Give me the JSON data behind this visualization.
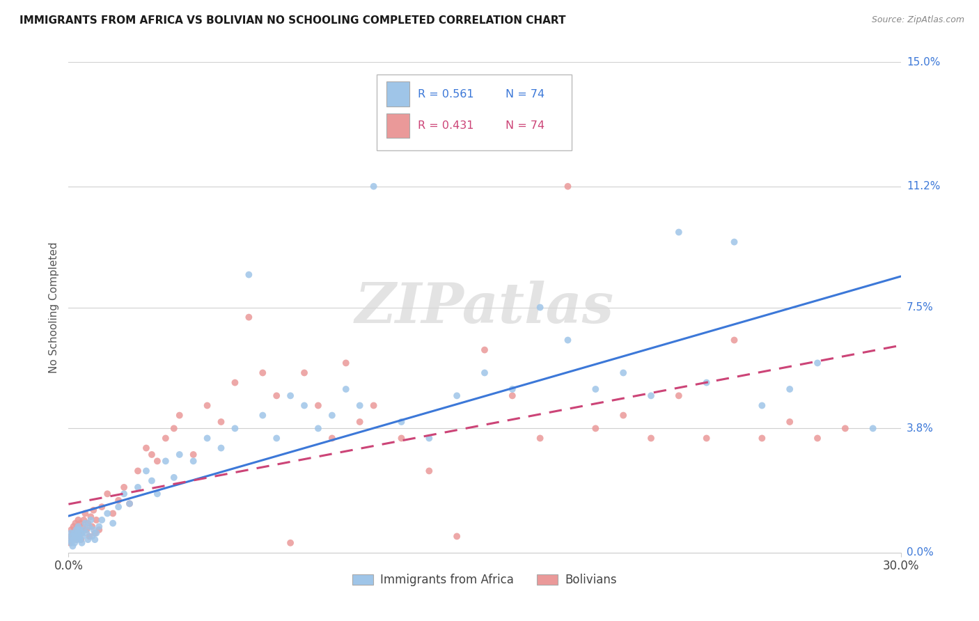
{
  "title": "IMMIGRANTS FROM AFRICA VS BOLIVIAN NO SCHOOLING COMPLETED CORRELATION CHART",
  "source": "Source: ZipAtlas.com",
  "ylabel": "No Schooling Completed",
  "ytick_values": [
    0.0,
    3.8,
    7.5,
    11.2,
    15.0
  ],
  "ytick_labels": [
    "0.0%",
    "3.8%",
    "7.5%",
    "11.2%",
    "15.0%"
  ],
  "xlim": [
    0.0,
    30.0
  ],
  "ylim": [
    0.0,
    15.0
  ],
  "blue_color": "#9fc5e8",
  "pink_color": "#ea9999",
  "blue_line_color": "#3c78d8",
  "pink_line_color": "#cc4477",
  "watermark_text": "ZIPatlas",
  "legend_r1_text": "R = 0.561",
  "legend_n1_text": "N = 74",
  "legend_r2_text": "R = 0.431",
  "legend_n2_text": "N = 74",
  "legend_label1": "Immigrants from Africa",
  "legend_label2": "Bolivians",
  "africa_x": [
    0.05,
    0.08,
    0.1,
    0.12,
    0.15,
    0.18,
    0.2,
    0.22,
    0.25,
    0.28,
    0.3,
    0.32,
    0.35,
    0.38,
    0.4,
    0.42,
    0.45,
    0.48,
    0.5,
    0.55,
    0.6,
    0.65,
    0.7,
    0.75,
    0.8,
    0.85,
    0.9,
    0.95,
    1.0,
    1.1,
    1.2,
    1.4,
    1.6,
    1.8,
    2.0,
    2.2,
    2.5,
    2.8,
    3.0,
    3.2,
    3.5,
    3.8,
    4.0,
    4.5,
    5.0,
    5.5,
    6.0,
    6.5,
    7.0,
    7.5,
    8.0,
    8.5,
    9.0,
    9.5,
    10.0,
    10.5,
    11.0,
    12.0,
    13.0,
    14.0,
    15.0,
    16.0,
    17.0,
    18.0,
    19.0,
    20.0,
    21.0,
    22.0,
    23.0,
    24.0,
    25.0,
    26.0,
    27.0,
    29.0
  ],
  "africa_y": [
    0.4,
    0.6,
    0.3,
    0.5,
    0.2,
    0.4,
    0.6,
    0.3,
    0.5,
    0.7,
    0.4,
    0.6,
    0.8,
    0.5,
    0.7,
    0.4,
    0.6,
    0.3,
    0.5,
    0.7,
    0.9,
    0.6,
    0.4,
    0.8,
    1.0,
    0.5,
    0.7,
    0.4,
    0.6,
    0.8,
    1.0,
    1.2,
    0.9,
    1.4,
    1.8,
    1.5,
    2.0,
    2.5,
    2.2,
    1.8,
    2.8,
    2.3,
    3.0,
    2.8,
    3.5,
    3.2,
    3.8,
    8.5,
    4.2,
    3.5,
    4.8,
    4.5,
    3.8,
    4.2,
    5.0,
    4.5,
    11.2,
    4.0,
    3.5,
    4.8,
    5.5,
    5.0,
    7.5,
    6.5,
    5.0,
    5.5,
    4.8,
    9.8,
    5.2,
    9.5,
    4.5,
    5.0,
    5.8,
    3.8
  ],
  "bolivia_x": [
    0.05,
    0.08,
    0.1,
    0.12,
    0.15,
    0.18,
    0.2,
    0.22,
    0.25,
    0.28,
    0.3,
    0.32,
    0.35,
    0.38,
    0.4,
    0.42,
    0.45,
    0.48,
    0.5,
    0.55,
    0.6,
    0.65,
    0.7,
    0.75,
    0.8,
    0.85,
    0.9,
    0.95,
    1.0,
    1.1,
    1.2,
    1.4,
    1.6,
    1.8,
    2.0,
    2.2,
    2.5,
    2.8,
    3.0,
    3.2,
    3.5,
    3.8,
    4.0,
    4.5,
    5.0,
    5.5,
    6.0,
    6.5,
    7.0,
    7.5,
    8.0,
    8.5,
    9.0,
    9.5,
    10.0,
    10.5,
    11.0,
    12.0,
    13.0,
    14.0,
    15.0,
    16.0,
    17.0,
    18.0,
    19.0,
    20.0,
    21.0,
    22.0,
    23.0,
    24.0,
    25.0,
    26.0,
    27.0,
    28.0
  ],
  "bolivia_y": [
    0.3,
    0.5,
    0.7,
    0.4,
    0.6,
    0.8,
    0.5,
    0.7,
    0.9,
    0.4,
    0.6,
    0.8,
    1.0,
    0.5,
    0.7,
    0.9,
    0.4,
    0.6,
    0.8,
    1.0,
    1.2,
    0.7,
    0.9,
    0.5,
    1.1,
    0.8,
    1.3,
    0.6,
    1.0,
    0.7,
    1.4,
    1.8,
    1.2,
    1.6,
    2.0,
    1.5,
    2.5,
    3.2,
    3.0,
    2.8,
    3.5,
    3.8,
    4.2,
    3.0,
    4.5,
    4.0,
    5.2,
    7.2,
    5.5,
    4.8,
    0.3,
    5.5,
    4.5,
    3.5,
    5.8,
    4.0,
    4.5,
    3.5,
    2.5,
    0.5,
    6.2,
    4.8,
    3.5,
    11.2,
    3.8,
    4.2,
    3.5,
    4.8,
    3.5,
    6.5,
    3.5,
    4.0,
    3.5,
    3.8
  ]
}
